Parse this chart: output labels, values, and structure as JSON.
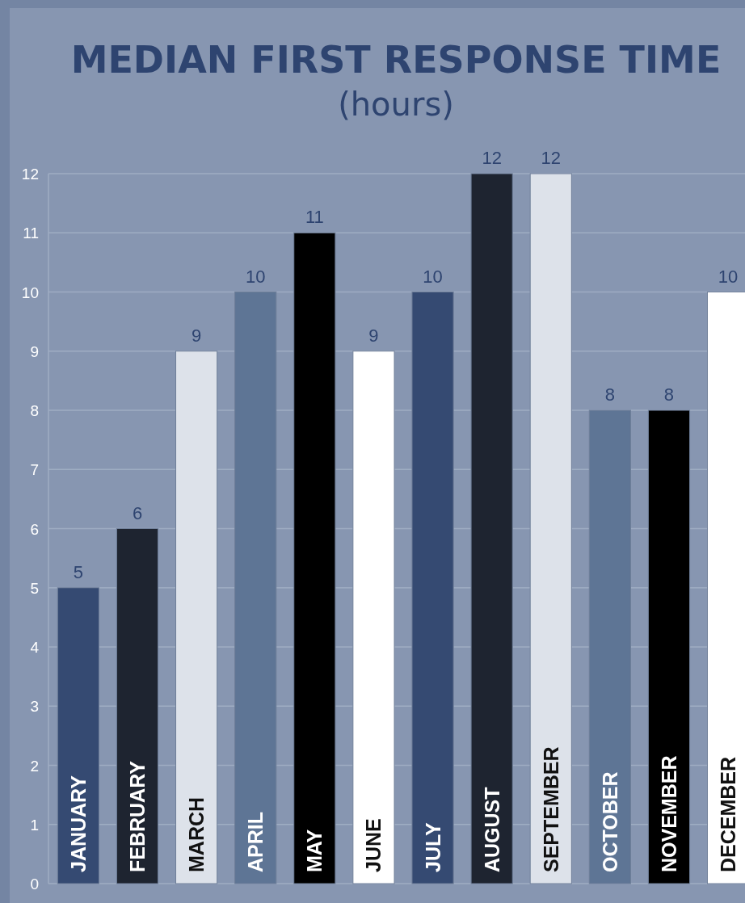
{
  "chart_data": {
    "type": "bar",
    "title": "MEDIAN FIRST RESPONSE TIME",
    "subtitle": "(hours)",
    "categories": [
      "JANUARY",
      "FEBRUARY",
      "MARCH",
      "APRIL",
      "MAY",
      "JUNE",
      "JULY",
      "AUGUST",
      "SEPTEMBER",
      "OCTOBER",
      "NOVEMBER",
      "DECEMBER"
    ],
    "values": [
      5,
      6,
      9,
      10,
      11,
      9,
      10,
      12,
      12,
      8,
      8,
      10
    ],
    "colors": [
      "#354a72",
      "#1e2430",
      "#dde2ea",
      "#5e7595",
      "#000000",
      "#ffffff",
      "#354a72",
      "#1e2430",
      "#dde2ea",
      "#5e7595",
      "#000000",
      "#ffffff"
    ],
    "ylim": [
      0,
      12
    ],
    "yticks": [
      0,
      1,
      2,
      3,
      4,
      5,
      6,
      7,
      8,
      9,
      10,
      11,
      12
    ],
    "grid": "y",
    "data_labels": true
  }
}
